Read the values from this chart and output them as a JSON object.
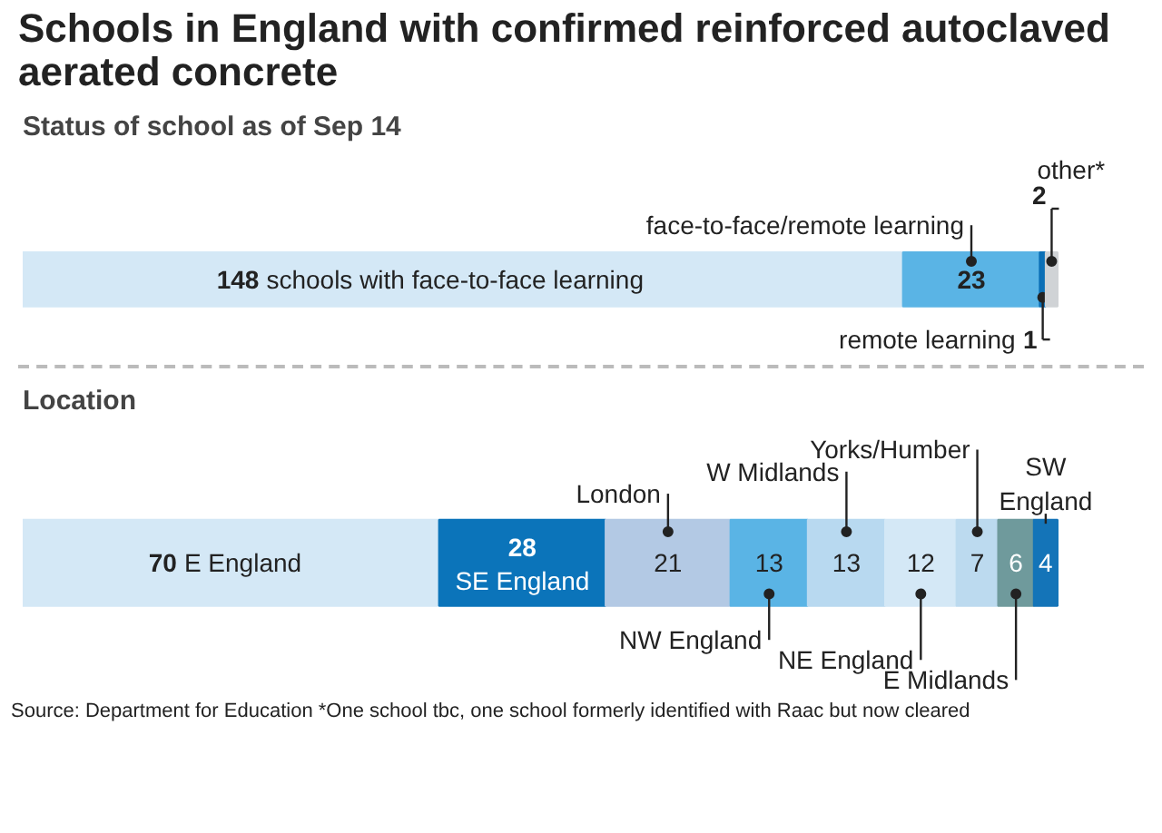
{
  "chart_data": [
    {
      "type": "bar",
      "orientation": "horizontal",
      "stacked": true,
      "title": "Schools in England with confirmed reinforced autoclaved aerated concrete",
      "subtitle": "Status of school as of Sep 14",
      "categories": [
        null
      ],
      "data_labels": true,
      "series": [
        {
          "name": "schools with face-to-face learning",
          "color": "#d4e8f6",
          "values": [
            148
          ]
        },
        {
          "name": "face-to-face/remote learning",
          "color": "#5ab4e5",
          "values": [
            23
          ]
        },
        {
          "name": "remote learning",
          "color": "#0b6fb6",
          "values": [
            1
          ]
        },
        {
          "name": "other*",
          "color": "#d0d3d6",
          "values": [
            2
          ]
        }
      ]
    },
    {
      "type": "bar",
      "orientation": "horizontal",
      "stacked": true,
      "title": "Location",
      "categories": [
        null
      ],
      "data_labels": true,
      "annotations": [
        "Source: Department for Education *One school tbc, one school formerly identified with Raac but now cleared"
      ],
      "series": [
        {
          "name": "E England",
          "color": "#d4e8f6",
          "values": [
            70
          ]
        },
        {
          "name": "SE England",
          "color": "#0b74ba",
          "values": [
            28
          ]
        },
        {
          "name": "London",
          "color": "#b3c9e4",
          "values": [
            21
          ]
        },
        {
          "name": "NW England",
          "color": "#5ab4e5",
          "values": [
            13
          ]
        },
        {
          "name": "W Midlands",
          "color": "#b8d9f0",
          "values": [
            13
          ]
        },
        {
          "name": "NE England",
          "color": "#d4e8f6",
          "values": [
            12
          ]
        },
        {
          "name": "Yorks/Humber",
          "color": "#bcdaef",
          "values": [
            7
          ]
        },
        {
          "name": "E Midlands",
          "color": "#6f9a9c",
          "values": [
            6
          ]
        },
        {
          "name": "SW England",
          "color": "#1474b8",
          "values": [
            4
          ]
        }
      ]
    }
  ]
}
